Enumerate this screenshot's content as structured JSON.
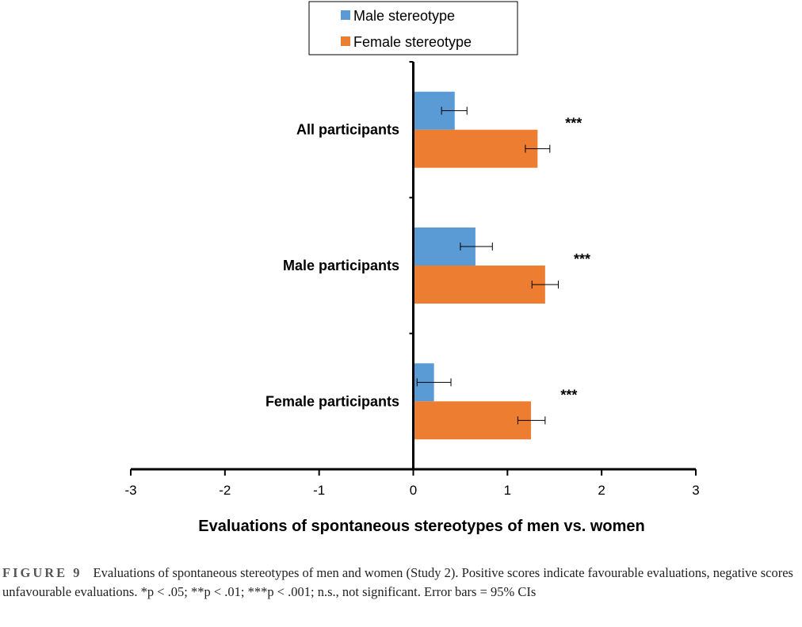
{
  "chart_data": {
    "type": "bar",
    "orientation": "horizontal",
    "categories": [
      "All participants",
      "Male participants",
      "Female participants"
    ],
    "series": [
      {
        "name": "Male stereotype",
        "color": "#5b9bd5",
        "values": [
          0.44,
          0.66,
          0.22
        ],
        "ci_low": [
          0.3,
          0.5,
          0.04
        ],
        "ci_high": [
          0.57,
          0.84,
          0.4
        ]
      },
      {
        "name": "Female stereotype",
        "color": "#ed7d31",
        "values": [
          1.32,
          1.4,
          1.25
        ],
        "ci_low": [
          1.19,
          1.26,
          1.11
        ],
        "ci_high": [
          1.45,
          1.54,
          1.4
        ]
      }
    ],
    "annotations": [
      "***",
      "***",
      "***"
    ],
    "xlim": [
      -3,
      3
    ],
    "xticks": [
      "-3",
      "-2",
      "-1",
      "0",
      "1",
      "2",
      "3"
    ],
    "xlabel": "Evaluations of spontaneous stereotypes of men vs. women",
    "legend": "top-center",
    "grid": false
  },
  "caption": {
    "label": "FIGURE 9",
    "text": "Evaluations of spontaneous stereotypes of men and women (Study 2). Positive scores indicate favourable evaluations, negative scores unfavourable evaluations. *p < .05; **p < .01; ***p < .001; n.s., not significant. Error bars = 95% CIs"
  }
}
